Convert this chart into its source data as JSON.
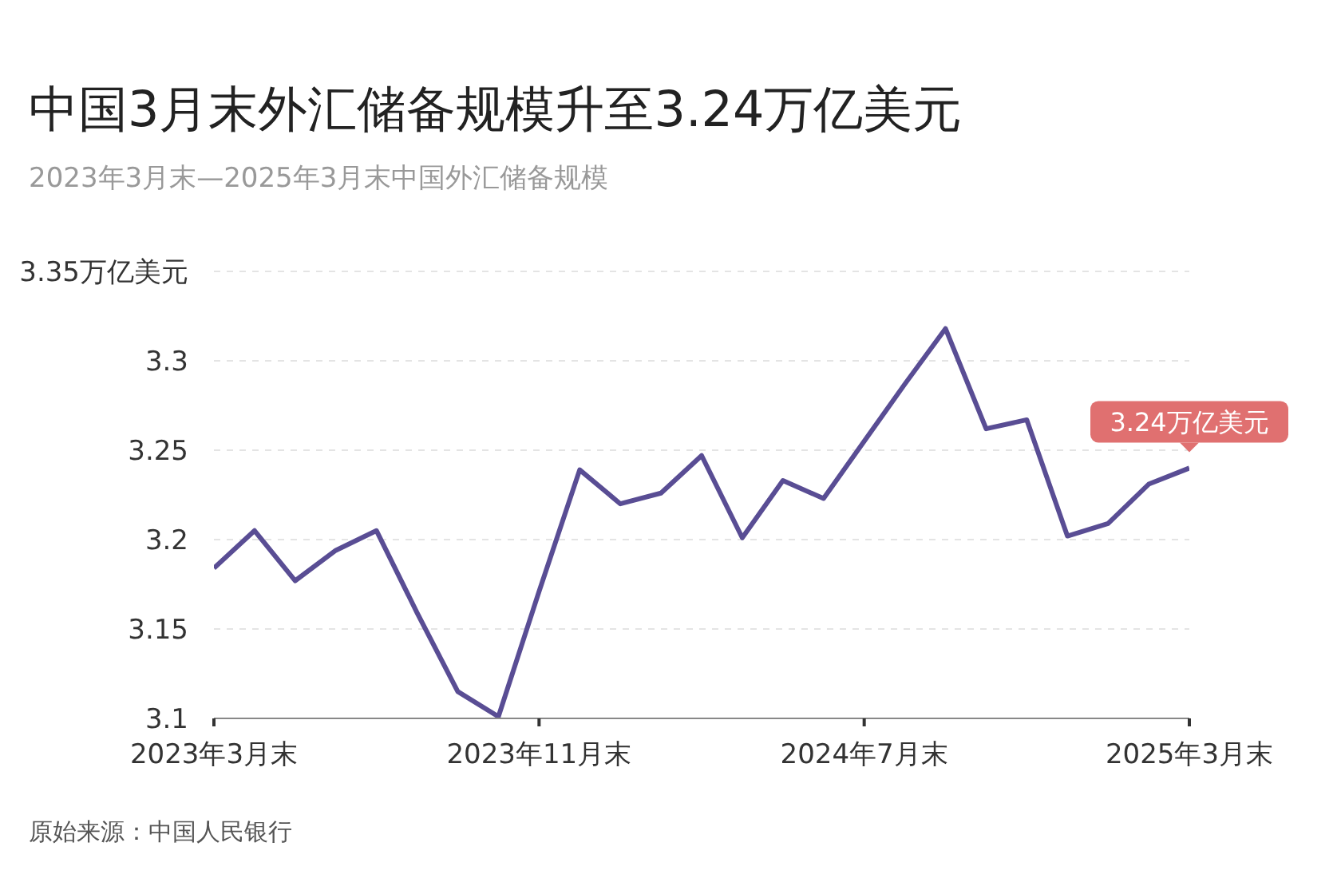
{
  "chart_data": {
    "type": "line",
    "title": "中国3月末外汇储备规模升至3.24万亿美元",
    "subtitle": "2023年3月末—2025年3月末中国外汇储备规模",
    "categories": [
      "2023年3月末",
      null,
      null,
      null,
      null,
      null,
      null,
      null,
      "2023年11月末",
      null,
      null,
      null,
      null,
      null,
      null,
      null,
      "2024年7月末",
      null,
      null,
      null,
      null,
      null,
      null,
      null,
      "2025年3月末"
    ],
    "series": [
      {
        "color": "#594d94",
        "values": [
          3.184,
          3.205,
          3.177,
          3.194,
          3.205,
          3.159,
          3.115,
          3.101,
          3.171,
          3.239,
          3.22,
          3.226,
          3.247,
          3.201,
          3.233,
          3.223,
          3.255,
          3.287,
          3.318,
          3.262,
          3.267,
          3.202,
          3.209,
          3.231,
          3.24
        ]
      }
    ],
    "ylim": [
      3.1,
      3.35
    ],
    "yticks": [
      3.1,
      3.15,
      3.2,
      3.25,
      3.3,
      {
        "value": 3.35,
        "label": "3.35万亿美元"
      }
    ],
    "grid": "y",
    "marker": "none",
    "line_style": "solid",
    "annotations": [
      {
        "text": "3.24万亿美元",
        "x": "2025年3月末",
        "y": 3.24
      },
      "原始来源：中国人民银行"
    ]
  }
}
